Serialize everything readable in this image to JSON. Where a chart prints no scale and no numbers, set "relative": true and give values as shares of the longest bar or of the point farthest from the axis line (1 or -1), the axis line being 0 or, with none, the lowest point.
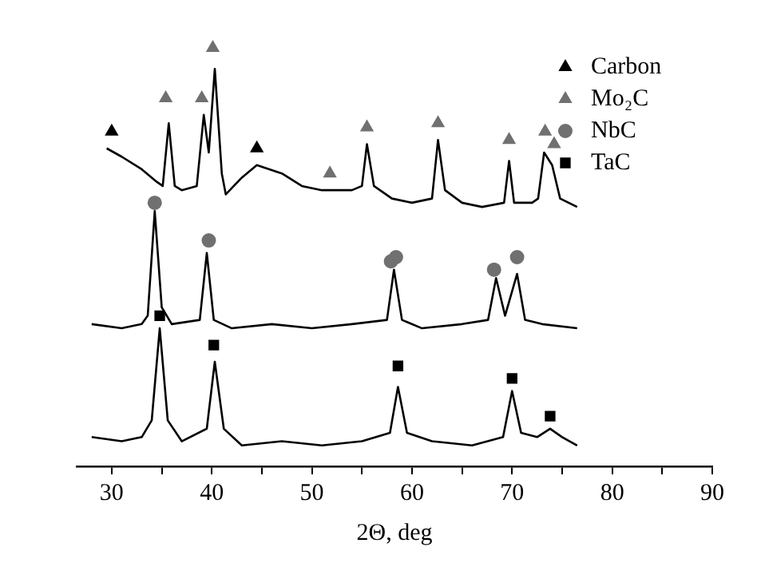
{
  "chart_data": {
    "type": "line",
    "xlabel": "2Θ, deg",
    "relative": true,
    "grid": false,
    "legend": "right",
    "xlim": [
      26.5,
      90
    ],
    "xticks": [
      30,
      {
        "value": 35,
        "label": null
      },
      40,
      {
        "value": 45,
        "label": null
      },
      50,
      {
        "value": 55,
        "label": null
      },
      60,
      {
        "value": 65,
        "label": null
      },
      70,
      {
        "value": 75,
        "label": null
      },
      80,
      {
        "value": 85,
        "label": null
      },
      90
    ],
    "tick_labels": "x",
    "series": [
      {
        "color": "#000000",
        "x": [
          29.5,
          31,
          33,
          34.5,
          35.1,
          35.7,
          36.3,
          37,
          38.5,
          39.2,
          39.7,
          40.3,
          41,
          41.4,
          43,
          44.5,
          47,
          49,
          51,
          52,
          54,
          55.0,
          55.5,
          56.2,
          58,
          60,
          62.0,
          62.6,
          63.3,
          65,
          67,
          69.2,
          69.7,
          70.2,
          72,
          72.6,
          73.2,
          74.0,
          74.8,
          76.5
        ],
        "values": [
          0.76,
          0.74,
          0.71,
          0.68,
          0.67,
          0.82,
          0.67,
          0.66,
          0.67,
          0.84,
          0.75,
          0.95,
          0.7,
          0.65,
          0.69,
          0.72,
          0.7,
          0.67,
          0.66,
          0.66,
          0.66,
          0.67,
          0.77,
          0.67,
          0.64,
          0.63,
          0.64,
          0.78,
          0.66,
          0.63,
          0.62,
          0.63,
          0.73,
          0.63,
          0.63,
          0.64,
          0.75,
          0.72,
          0.64,
          0.62
        ]
      },
      {
        "color": "#000000",
        "x": [
          28,
          31,
          33,
          33.6,
          34.3,
          35,
          36,
          38.8,
          39.5,
          40.2,
          42,
          46,
          50,
          54,
          57.5,
          58.2,
          59,
          61,
          65,
          67.6,
          68.4,
          69.3,
          70.5,
          71.3,
          73,
          76.5
        ],
        "values": [
          0.34,
          0.33,
          0.34,
          0.36,
          0.61,
          0.38,
          0.34,
          0.35,
          0.51,
          0.35,
          0.33,
          0.34,
          0.33,
          0.34,
          0.35,
          0.47,
          0.35,
          0.33,
          0.34,
          0.35,
          0.45,
          0.36,
          0.46,
          0.35,
          0.34,
          0.33
        ]
      },
      {
        "color": "#000000",
        "x": [
          28,
          31,
          33,
          34.0,
          34.8,
          35.6,
          37,
          39.5,
          40.3,
          41.2,
          43,
          47,
          51,
          55,
          57.8,
          58.6,
          59.5,
          62,
          66,
          69.1,
          70.0,
          70.9,
          72.5,
          73.8,
          75,
          76.5
        ],
        "values": [
          0.07,
          0.06,
          0.07,
          0.11,
          0.33,
          0.11,
          0.06,
          0.09,
          0.25,
          0.09,
          0.05,
          0.06,
          0.05,
          0.06,
          0.08,
          0.19,
          0.08,
          0.06,
          0.05,
          0.07,
          0.18,
          0.08,
          0.07,
          0.09,
          0.07,
          0.05
        ]
      },
      {
        "type": "scatter",
        "name": "Carbon",
        "marker": "triangle",
        "color": "#000000",
        "x": [
          30.0,
          44.5
        ],
        "values": [
          0.8,
          0.76
        ]
      },
      {
        "type": "scatter",
        "name": "Mo₂C",
        "marker": "triangle",
        "color": "#707070",
        "x": [
          35.4,
          39.0,
          40.1,
          51.8,
          55.5,
          62.6,
          69.7,
          73.3,
          74.2
        ],
        "values": [
          0.88,
          0.88,
          1.0,
          0.7,
          0.81,
          0.82,
          0.78,
          0.8,
          0.77
        ]
      },
      {
        "type": "scatter",
        "name": "NbC",
        "marker": "circle",
        "color": "#707070",
        "x": [
          34.3,
          39.7,
          57.9,
          58.4,
          68.2,
          70.5
        ],
        "values": [
          0.63,
          0.54,
          0.49,
          0.5,
          0.47,
          0.5
        ]
      },
      {
        "type": "scatter",
        "name": "TaC",
        "marker": "square",
        "color": "#000000",
        "x": [
          34.8,
          40.2,
          58.6,
          70.0,
          73.8
        ],
        "values": [
          0.36,
          0.29,
          0.24,
          0.21,
          0.12
        ]
      }
    ]
  }
}
